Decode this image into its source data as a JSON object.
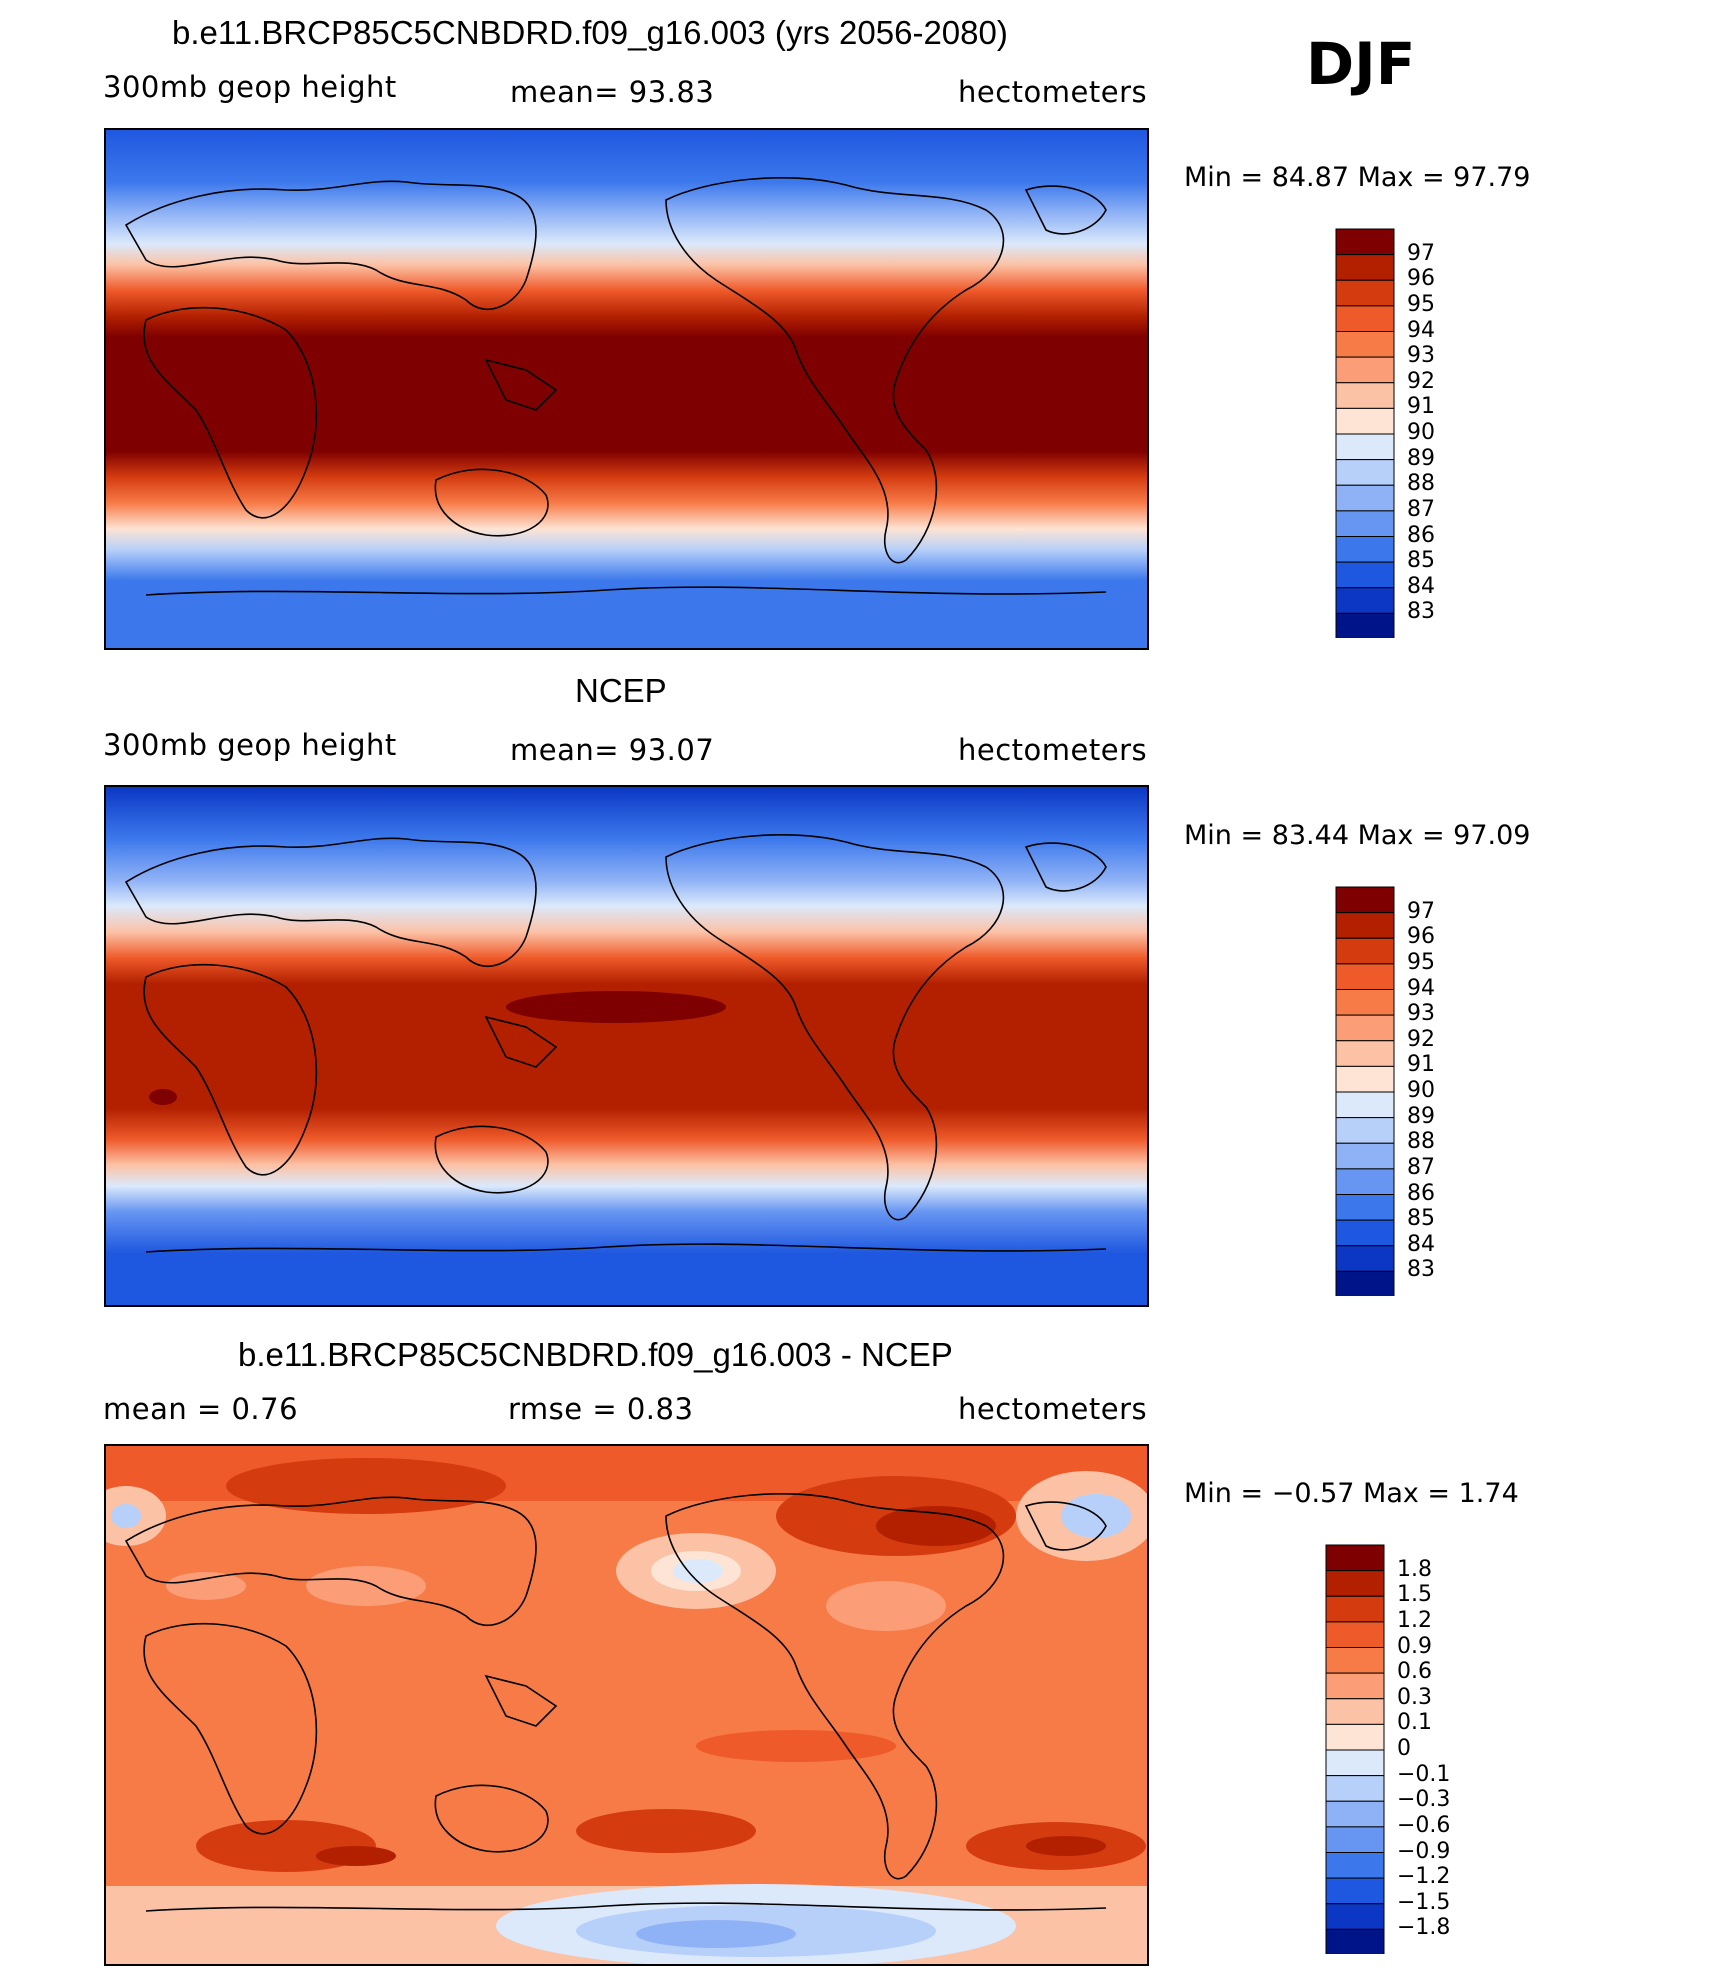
{
  "figure": {
    "season": "DJF",
    "units": "hectometers"
  },
  "panels": [
    {
      "title": "b.e11.BRCP85C5CNBDRD.f09_g16.003 (yrs 2056-2080)",
      "variable": "300mb geop height",
      "stat": "mean=   93.83",
      "units": "hectometers",
      "minmax": "Min =   84.87  Max =   97.79",
      "colorbar_labels": [
        "97",
        "96",
        "95",
        "94",
        "93",
        "92",
        "91",
        "90",
        "89",
        "88",
        "87",
        "86",
        "85",
        "84",
        "83"
      ]
    },
    {
      "title": "NCEP",
      "variable": "300mb geop height",
      "stat": "mean=   93.07",
      "units": "hectometers",
      "minmax": "Min =   83.44  Max =   97.09",
      "colorbar_labels": [
        "97",
        "96",
        "95",
        "94",
        "93",
        "92",
        "91",
        "90",
        "89",
        "88",
        "87",
        "86",
        "85",
        "84",
        "83"
      ]
    },
    {
      "title": "b.e11.BRCP85C5CNBDRD.f09_g16.003 - NCEP",
      "variable": "mean =     0.76",
      "stat": "rmse =     0.83",
      "units": "hectometers",
      "minmax": "Min =   −0.57  Max =     1.74",
      "colorbar_labels": [
        "1.8",
        "1.5",
        "1.2",
        "0.9",
        "0.6",
        "0.3",
        "0.1",
        "0",
        "−0.1",
        "−0.3",
        "−0.6",
        "−0.9",
        "−1.2",
        "−1.5",
        "−1.8"
      ]
    }
  ],
  "colors": {
    "scale16": [
      "#7f0000",
      "#b22000",
      "#d43c10",
      "#ef5a2a",
      "#f77b47",
      "#fb9e78",
      "#fcc2a6",
      "#fde4d4",
      "#dbe9fb",
      "#b7d0fa",
      "#8fb2f6",
      "#6796f2",
      "#3c78ec",
      "#1f58e0",
      "#0b37c4",
      "#001489"
    ],
    "coast": "#000000"
  }
}
